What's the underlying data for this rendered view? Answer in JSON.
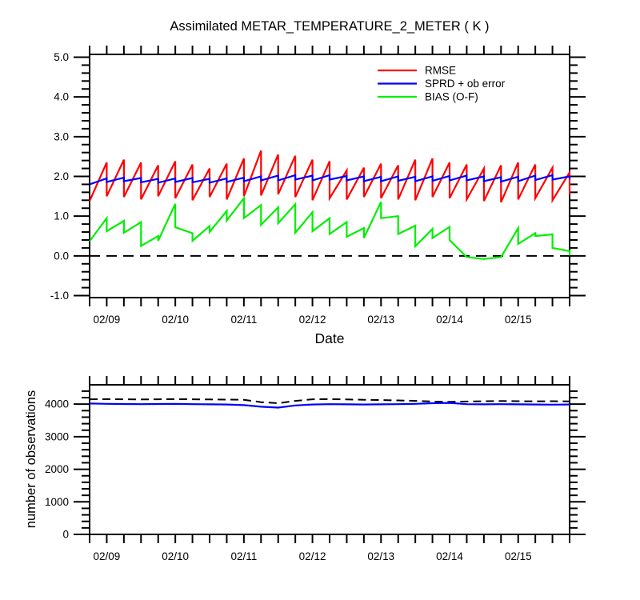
{
  "chart_data": [
    {
      "type": "line",
      "title": "Assimilated METAR_TEMPERATURE_2_METER ( K )",
      "xlabel": "Date",
      "ylabel": "",
      "ylim": [
        -1.05,
        5.07
      ],
      "grid": false,
      "yticks": {
        "major": [
          -1,
          0,
          1,
          2,
          3,
          4,
          5
        ],
        "labels": [
          "-1.0",
          "0.0",
          "1.0",
          "2.0",
          "3.0",
          "4.0",
          "5.0"
        ],
        "minor_step": 0.2
      },
      "x": {
        "tick_labels": [
          "02/09",
          "02/10",
          "02/11",
          "02/12",
          "02/13",
          "02/14",
          "02/15"
        ],
        "tick_label_hours": [
          6,
          30,
          54,
          78,
          102,
          126,
          150
        ],
        "hours_total": 168,
        "tick_step_hours": 6
      },
      "zero_line": {
        "value": 0.0,
        "style": "dashed",
        "color": "#000000"
      },
      "legend": {
        "position": "top-right",
        "entries": [
          {
            "label": "RMSE",
            "color": "#ff0000"
          },
          {
            "label": "SPRD + ob error",
            "color": "#0000ff"
          },
          {
            "label": "BIAS (O-F)",
            "color": "#00ee00"
          }
        ]
      },
      "series": [
        {
          "id": "rmse",
          "name": "RMSE",
          "color": "#ff0000",
          "pattern": "sawtooth",
          "cycle_hours": 6,
          "lows": [
            1.38,
            1.5,
            1.48,
            1.42,
            1.5,
            1.45,
            1.4,
            1.48,
            1.42,
            1.5,
            1.52,
            1.55,
            1.48,
            1.4,
            1.45,
            1.42,
            1.48,
            1.45,
            1.42,
            1.4,
            1.48,
            1.45,
            1.42,
            1.38,
            1.35,
            1.42,
            1.45,
            1.4,
            1.55
          ],
          "highs": [
            2.35,
            2.42,
            2.35,
            2.28,
            2.38,
            2.3,
            2.2,
            2.32,
            2.45,
            2.65,
            2.55,
            2.52,
            2.42,
            2.38,
            2.15,
            2.22,
            2.32,
            2.28,
            2.42,
            2.45,
            2.35,
            2.3,
            2.2,
            2.28,
            2.35,
            2.3,
            2.22,
            2.1
          ]
        },
        {
          "id": "sprd",
          "name": "SPRD + ob error",
          "color": "#0000ff",
          "pattern": "sawtooth",
          "cycle_hours": 6,
          "lows": [
            1.8,
            1.86,
            1.88,
            1.85,
            1.84,
            1.86,
            1.85,
            1.84,
            1.86,
            1.88,
            1.9,
            1.9,
            1.92,
            1.9,
            1.92,
            1.9,
            1.88,
            1.88,
            1.89,
            1.88,
            1.89,
            1.9,
            1.9,
            1.88,
            1.87,
            1.88,
            1.91,
            1.92,
            1.93
          ],
          "highs": [
            1.95,
            1.97,
            1.96,
            1.94,
            1.95,
            1.96,
            1.94,
            1.95,
            1.97,
            2.0,
            2.02,
            2.03,
            2.02,
            2.03,
            2.01,
            2.0,
            1.99,
            2.0,
            1.99,
            2.0,
            2.01,
            2.02,
            2.0,
            1.98,
            1.99,
            2.02,
            2.03,
            2.0
          ]
        },
        {
          "id": "bias",
          "name": "BIAS (O-F)",
          "color": "#00ee00",
          "pattern": "sawtooth",
          "cycle_hours": 6,
          "lows": [
            0.37,
            0.62,
            0.58,
            0.25,
            0.38,
            0.72,
            0.38,
            0.6,
            0.89,
            0.95,
            0.78,
            0.82,
            0.58,
            0.62,
            0.55,
            0.48,
            0.45,
            0.95,
            0.55,
            0.24,
            0.45,
            0.4,
            -0.03,
            -0.08,
            -0.03,
            0.3,
            0.5,
            0.2,
            0.01
          ],
          "highs": [
            0.95,
            0.88,
            0.85,
            0.5,
            1.31,
            0.57,
            0.75,
            1.13,
            1.45,
            1.28,
            1.22,
            1.3,
            1.1,
            0.95,
            0.85,
            0.7,
            1.36,
            1.0,
            0.76,
            0.68,
            0.73,
            -0.03,
            -0.08,
            -0.03,
            0.7,
            0.57,
            0.54,
            0.12
          ]
        }
      ]
    },
    {
      "type": "line",
      "title": "",
      "xlabel": "",
      "ylabel": "number of observations",
      "ylim": [
        0,
        4594
      ],
      "grid": false,
      "yticks": {
        "major": [
          0,
          1000,
          2000,
          3000,
          4000
        ],
        "labels": [
          "0",
          "1000",
          "2000",
          "3000",
          "4000"
        ],
        "minor_step": 200
      },
      "x": {
        "tick_labels": [
          "02/09",
          "02/10",
          "02/11",
          "02/12",
          "02/13",
          "02/14",
          "02/15"
        ],
        "tick_label_hours": [
          6,
          30,
          54,
          78,
          102,
          126,
          150
        ],
        "hours_total": 168,
        "tick_step_hours": 6
      },
      "series": [
        {
          "id": "obs-dashed",
          "name": "dashed black line",
          "color": "#000000",
          "style": "dashed",
          "values": [
            4150,
            4155,
            4150,
            4145,
            4150,
            4155,
            4150,
            4145,
            4140,
            4135,
            4060,
            4030,
            4100,
            4150,
            4155,
            4145,
            4135,
            4125,
            4115,
            4100,
            4080,
            4070,
            4080,
            4090,
            4095,
            4090,
            4085,
            4090,
            4085
          ]
        },
        {
          "id": "obs-solid",
          "name": "solid blue line",
          "color": "#0000ff",
          "style": "solid",
          "values": [
            4020,
            4010,
            4005,
            4000,
            4005,
            4010,
            4000,
            3995,
            3990,
            3970,
            3920,
            3895,
            3960,
            3990,
            4000,
            3995,
            3990,
            3995,
            4000,
            4010,
            4030,
            4040,
            4000,
            3995,
            4000,
            3995,
            3990,
            3985,
            3990
          ]
        }
      ]
    }
  ]
}
